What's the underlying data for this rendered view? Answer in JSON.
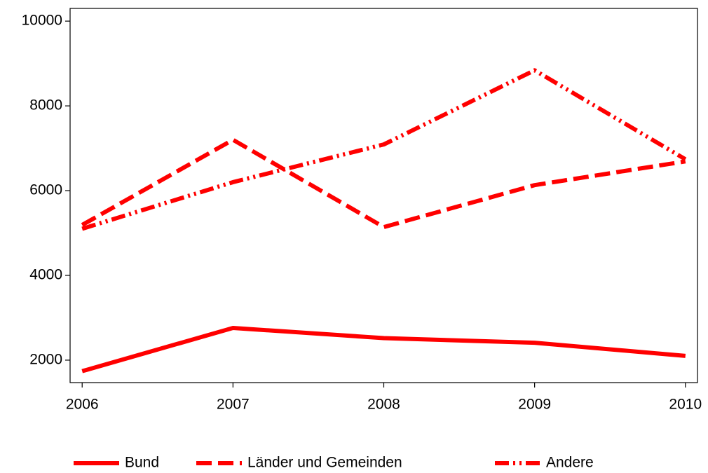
{
  "chart_data": {
    "type": "line",
    "x": [
      2006,
      2007,
      2008,
      2009,
      2010
    ],
    "xlim": [
      2005.92,
      2010.08
    ],
    "xticks": [
      2006,
      2007,
      2008,
      2009,
      2010
    ],
    "ylim": [
      1470,
      10300
    ],
    "yticks": [
      2000,
      4000,
      6000,
      8000,
      10000
    ],
    "grid": false,
    "legend": "bottom",
    "series": [
      {
        "name": "Bund",
        "color": "#ff0000",
        "dash": "solid",
        "values": [
          1740,
          2760,
          2520,
          2410,
          2100
        ]
      },
      {
        "name": "Länder und Gemeinden",
        "color": "#ff0000",
        "dash": "dashed",
        "values": [
          5190,
          7200,
          5140,
          6130,
          6690
        ]
      },
      {
        "name": "Andere",
        "color": "#ff0000",
        "dash": "dashdotdot",
        "values": [
          5100,
          6200,
          7090,
          8840,
          6740
        ]
      }
    ]
  }
}
